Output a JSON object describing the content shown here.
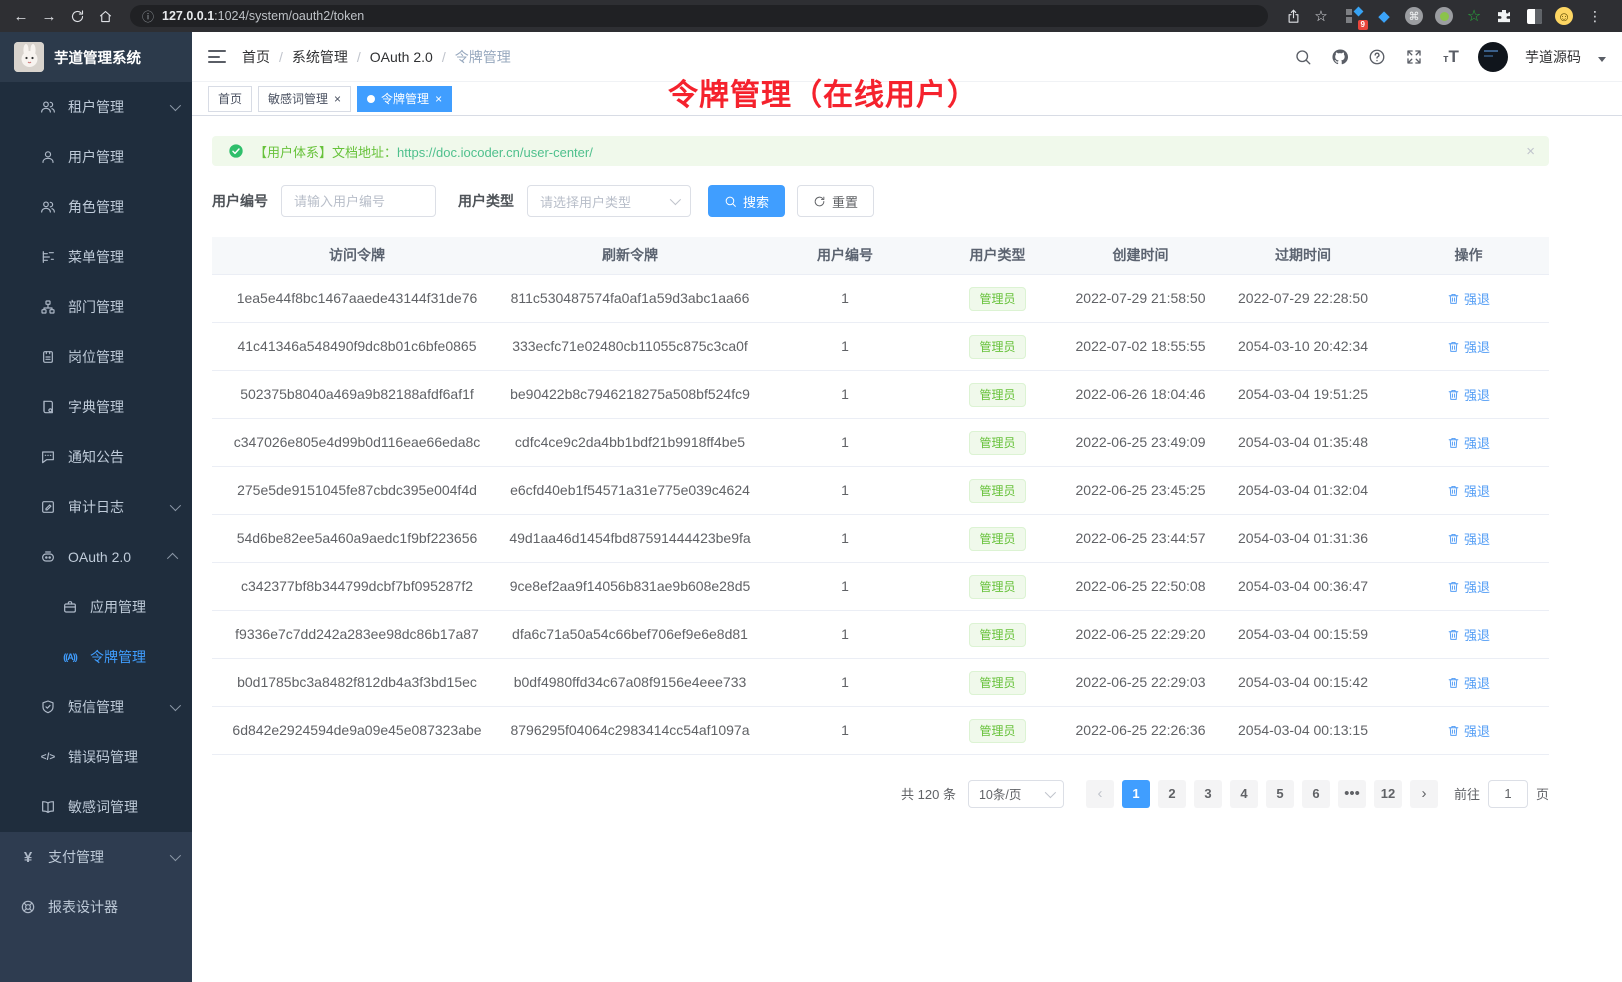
{
  "browser": {
    "url_host": "127.0.0.1",
    "url_path": ":1024/system/oauth2/token",
    "extension_badge": "9"
  },
  "annotation": {
    "text": "令牌管理（在线用户）",
    "color": "#f5222d"
  },
  "sidebar": {
    "logo_title": "芋道管理系统",
    "items": [
      {
        "label": "租户管理",
        "icon": "tenant-users-icon",
        "depth": 2,
        "chevron": "down",
        "section": "sub"
      },
      {
        "label": "用户管理",
        "icon": "user-icon",
        "depth": 2,
        "section": "sub"
      },
      {
        "label": "角色管理",
        "icon": "role-users-icon",
        "depth": 2,
        "section": "sub"
      },
      {
        "label": "菜单管理",
        "icon": "menu-tree-icon",
        "depth": 2,
        "section": "sub"
      },
      {
        "label": "部门管理",
        "icon": "org-chart-icon",
        "depth": 2,
        "section": "sub"
      },
      {
        "label": "岗位管理",
        "icon": "post-badge-icon",
        "depth": 2,
        "section": "sub"
      },
      {
        "label": "字典管理",
        "icon": "dict-book-icon",
        "depth": 2,
        "section": "sub"
      },
      {
        "label": "通知公告",
        "icon": "notice-comment-icon",
        "depth": 2,
        "section": "sub"
      },
      {
        "label": "审计日志",
        "icon": "audit-log-icon",
        "depth": 2,
        "chevron": "down",
        "section": "sub"
      },
      {
        "label": "OAuth 2.0",
        "icon": "oauth-robot-icon",
        "depth": 2,
        "chevron": "up",
        "section": "sub"
      },
      {
        "label": "应用管理",
        "icon": "app-briefcase-icon",
        "depth": 3,
        "section": "sub"
      },
      {
        "label": "令牌管理",
        "icon": "token-signal-icon",
        "depth": 3,
        "active": true,
        "section": "sub"
      },
      {
        "label": "短信管理",
        "icon": "sms-shield-icon",
        "depth": 2,
        "chevron": "down",
        "section": "sub"
      },
      {
        "label": "错误码管理",
        "icon": "error-code-icon",
        "depth": 2,
        "section": "sub"
      },
      {
        "label": "敏感词管理",
        "icon": "sensitive-word-icon",
        "depth": 2,
        "section": "sub"
      },
      {
        "label": "支付管理",
        "icon": "pay-yen-icon",
        "depth": 1,
        "chevron": "down",
        "section": "base"
      },
      {
        "label": "报表设计器",
        "icon": "report-designer-icon",
        "depth": 1,
        "section": "base"
      }
    ]
  },
  "header": {
    "breadcrumb": [
      "首页",
      "系统管理",
      "OAuth 2.0",
      "令牌管理"
    ],
    "username": "芋道源码"
  },
  "tabs": [
    {
      "label": "首页"
    },
    {
      "label": "敏感词管理",
      "closable": true
    },
    {
      "label": "令牌管理",
      "closable": true,
      "active": true
    }
  ],
  "alert": {
    "text": "【用户体系】文档地址：",
    "link": "https://doc.iocoder.cn/user-center/"
  },
  "filters": {
    "user_id_label": "用户编号",
    "user_id_placeholder": "请输入用户编号",
    "user_type_label": "用户类型",
    "user_type_placeholder": "请选择用户类型",
    "search_label": "搜索",
    "reset_label": "重置"
  },
  "table": {
    "columns": [
      "访问令牌",
      "刷新令牌",
      "用户编号",
      "用户类型",
      "创建时间",
      "过期时间",
      "操作"
    ],
    "action_label": "强退",
    "rows": [
      {
        "access": "1ea5e44f8bc1467aaede43144f31de76",
        "refresh": "811c530487574fa0af1a59d3abc1aa66",
        "user_id": "1",
        "user_type": "管理员",
        "created": "2022-07-29 21:58:50",
        "expires": "2022-07-29 22:28:50"
      },
      {
        "access": "41c41346a548490f9dc8b01c6bfe0865",
        "refresh": "333ecfc71e02480cb11055c875c3ca0f",
        "user_id": "1",
        "user_type": "管理员",
        "created": "2022-07-02 18:55:55",
        "expires": "2054-03-10 20:42:34"
      },
      {
        "access": "502375b8040a469a9b82188afdf6af1f",
        "refresh": "be90422b8c7946218275a508bf524fc9",
        "user_id": "1",
        "user_type": "管理员",
        "created": "2022-06-26 18:04:46",
        "expires": "2054-03-04 19:51:25"
      },
      {
        "access": "c347026e805e4d99b0d116eae66eda8c",
        "refresh": "cdfc4ce9c2da4bb1bdf21b9918ff4be5",
        "user_id": "1",
        "user_type": "管理员",
        "created": "2022-06-25 23:49:09",
        "expires": "2054-03-04 01:35:48"
      },
      {
        "access": "275e5de9151045fe87cbdc395e004f4d",
        "refresh": "e6cfd40eb1f54571a31e775e039c4624",
        "user_id": "1",
        "user_type": "管理员",
        "created": "2022-06-25 23:45:25",
        "expires": "2054-03-04 01:32:04"
      },
      {
        "access": "54d6be82ee5a460a9aedc1f9bf223656",
        "refresh": "49d1aa46d1454fbd87591444423be9fa",
        "user_id": "1",
        "user_type": "管理员",
        "created": "2022-06-25 23:44:57",
        "expires": "2054-03-04 01:31:36"
      },
      {
        "access": "c342377bf8b344799dcbf7bf095287f2",
        "refresh": "9ce8ef2aa9f14056b831ae9b608e28d5",
        "user_id": "1",
        "user_type": "管理员",
        "created": "2022-06-25 22:50:08",
        "expires": "2054-03-04 00:36:47"
      },
      {
        "access": "f9336e7c7dd242a283ee98dc86b17a87",
        "refresh": "dfa6c71a50a54c66bef706ef9e6e8d81",
        "user_id": "1",
        "user_type": "管理员",
        "created": "2022-06-25 22:29:20",
        "expires": "2054-03-04 00:15:59"
      },
      {
        "access": "b0d1785bc3a8482f812db4a3f3bd15ec",
        "refresh": "b0df4980ffd34c67a08f9156e4eee733",
        "user_id": "1",
        "user_type": "管理员",
        "created": "2022-06-25 22:29:03",
        "expires": "2054-03-04 00:15:42"
      },
      {
        "access": "6d842e2924594de9a09e45e087323abe",
        "refresh": "8796295f04064c2983414cc54af1097a",
        "user_id": "1",
        "user_type": "管理员",
        "created": "2022-06-25 22:26:36",
        "expires": "2054-03-04 00:13:15"
      }
    ]
  },
  "pagination": {
    "total": "共 120 条",
    "page_size": "10条/页",
    "prev": "‹",
    "next": "›",
    "pages": [
      "1",
      "2",
      "3",
      "4",
      "5",
      "6",
      "•••",
      "12"
    ],
    "active_page": "1",
    "goto_prefix": "前往",
    "goto_value": "1",
    "goto_suffix": "页"
  },
  "colors": {
    "primary": "#409eff",
    "success": "#67c23a",
    "annotation_red": "#f5222d"
  }
}
